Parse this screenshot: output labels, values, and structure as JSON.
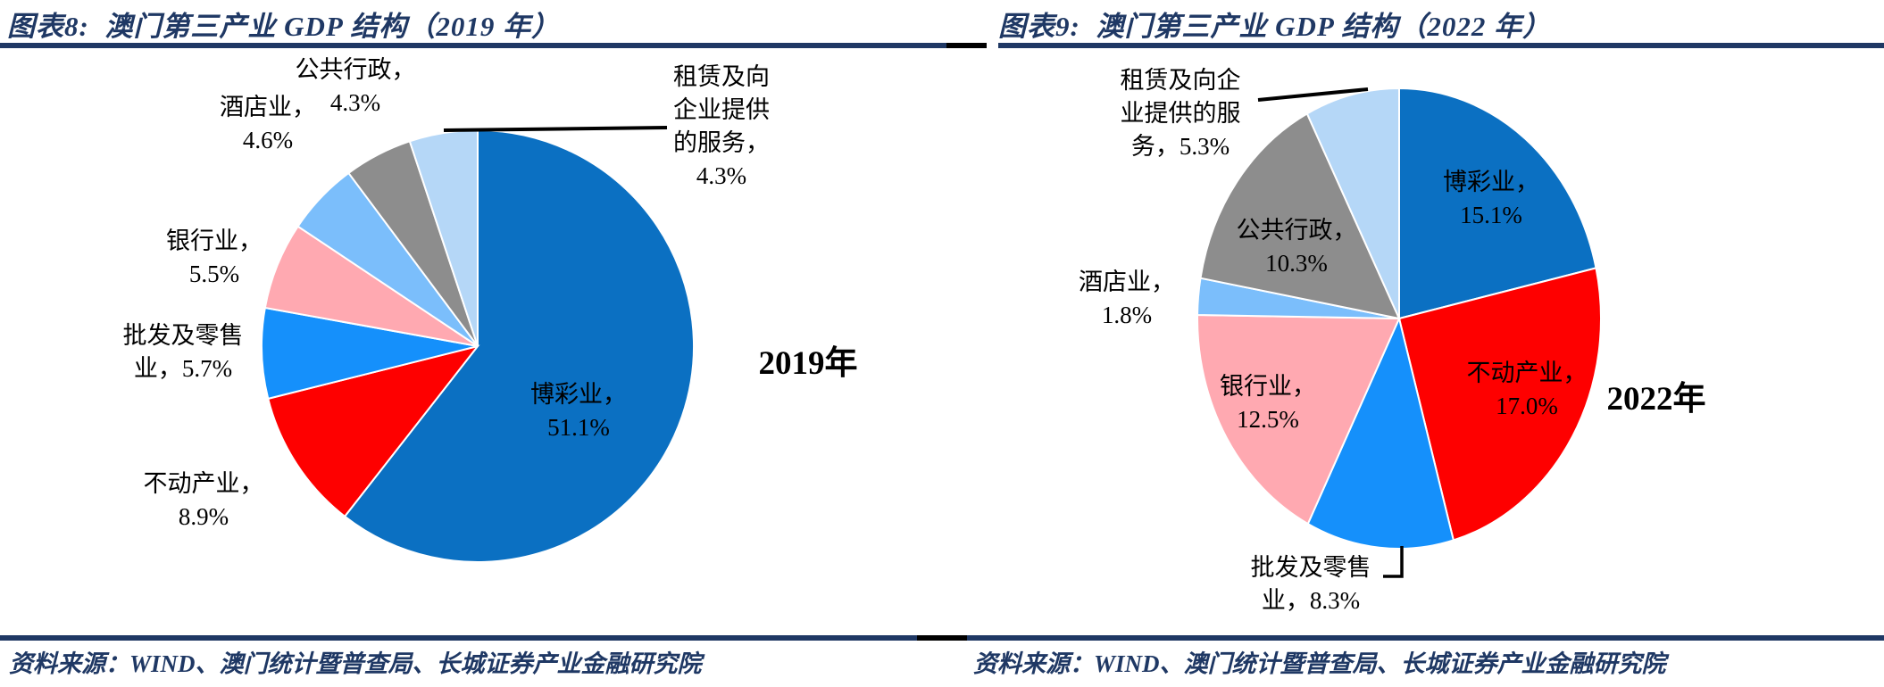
{
  "figure_left": {
    "title": "图表8:  澳门第三产业 GDP 结构（2019 年）",
    "source": "资料来源：WIND、澳门统计暨普查局、长城证券产业金融研究院"
  },
  "figure_right": {
    "title": "图表9:  澳门第三产业 GDP 结构（2022 年）",
    "source": "资料来源：WIND、澳门统计暨普查局、长城证券产业金融研究院"
  },
  "chart_data": [
    {
      "type": "pie",
      "title": "澳门第三产业 GDP 结构（2019 年）",
      "year": "2019",
      "year_label": "2019年",
      "unit": "%",
      "start_angle_deg": 0,
      "direction": "clockwise",
      "legend": "none",
      "slices": [
        {
          "key": "gaming",
          "name": "博彩业",
          "value": 51.1,
          "color": "#0b70c2",
          "label_lines": [
            "博彩业，",
            "51.1%"
          ]
        },
        {
          "key": "real-estate",
          "name": "不动产业",
          "value": 8.9,
          "color": "#fe0000",
          "label_lines": [
            "不动产业，",
            "8.9%"
          ]
        },
        {
          "key": "wholesale-retail",
          "name": "批发及零售业",
          "value": 5.7,
          "color": "#1590fb",
          "label_lines": [
            "批发及零售",
            "业，5.7%"
          ]
        },
        {
          "key": "banking",
          "name": "银行业",
          "value": 5.5,
          "color": "#ffa9b1",
          "label_lines": [
            "银行业，",
            "5.5%"
          ]
        },
        {
          "key": "hotels",
          "name": "酒店业",
          "value": 4.6,
          "color": "#7bbefb",
          "label_lines": [
            "酒店业，",
            "4.6%"
          ]
        },
        {
          "key": "public-admin",
          "name": "公共行政",
          "value": 4.3,
          "color": "#8d8d8d",
          "label_lines": [
            "公共行政，",
            "4.3%"
          ]
        },
        {
          "key": "rental-services",
          "name": "租赁及向企业提供的服务",
          "value": 4.3,
          "color": "#b5d7f7",
          "label_lines": [
            "租赁及向",
            "企业提供",
            "的服务，",
            "4.3%"
          ]
        }
      ]
    },
    {
      "type": "pie",
      "title": "澳门第三产业 GDP 结构（2022 年）",
      "year": "2022",
      "year_label": "2022年",
      "unit": "%",
      "start_angle_deg": 0,
      "direction": "clockwise",
      "legend": "none",
      "slices": [
        {
          "key": "gaming",
          "name": "博彩业",
          "value": 15.1,
          "color": "#0b70c2",
          "label_lines": [
            "博彩业，",
            "15.1%"
          ]
        },
        {
          "key": "real-estate",
          "name": "不动产业",
          "value": 17.0,
          "color": "#fe0000",
          "label_lines": [
            "不动产业，",
            "17.0%"
          ]
        },
        {
          "key": "wholesale-retail",
          "name": "批发及零售业",
          "value": 8.3,
          "color": "#1590fb",
          "label_lines": [
            "批发及零售",
            "业，8.3%"
          ]
        },
        {
          "key": "banking",
          "name": "银行业",
          "value": 12.5,
          "color": "#ffa9b1",
          "label_lines": [
            "银行业，",
            "12.5%"
          ]
        },
        {
          "key": "hotels",
          "name": "酒店业",
          "value": 1.8,
          "color": "#7bbefb",
          "label_lines": [
            "酒店业，",
            "1.8%"
          ]
        },
        {
          "key": "public-admin",
          "name": "公共行政",
          "value": 10.3,
          "color": "#8d8d8d",
          "label_lines": [
            "公共行政，",
            "10.3%"
          ]
        },
        {
          "key": "rental-services",
          "name": "租赁及向企业提供的服务",
          "value": 5.3,
          "color": "#b5d7f7",
          "label_lines": [
            "租赁及向企",
            "业提供的服",
            "务，5.3%"
          ]
        }
      ]
    }
  ]
}
